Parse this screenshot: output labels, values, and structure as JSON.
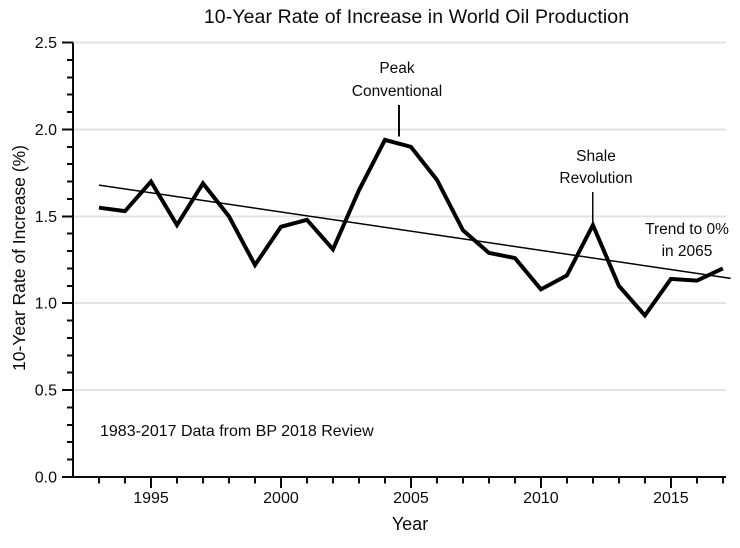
{
  "chart_data": {
    "type": "line",
    "title": "10-Year Rate of Increase in World Oil Production",
    "xlabel": "Year",
    "ylabel": "10-Year Rate of Increase (%)",
    "x": [
      1993,
      1994,
      1995,
      1996,
      1997,
      1998,
      1999,
      2000,
      2001,
      2002,
      2003,
      2004,
      2005,
      2006,
      2007,
      2008,
      2009,
      2010,
      2011,
      2012,
      2013,
      2014,
      2015,
      2016,
      2017
    ],
    "series": [
      {
        "name": "10-year rate of increase in world oil production",
        "values": [
          1.55,
          1.53,
          1.7,
          1.45,
          1.69,
          1.5,
          1.22,
          1.44,
          1.48,
          1.31,
          1.65,
          1.94,
          1.9,
          1.71,
          1.42,
          1.29,
          1.26,
          1.08,
          1.16,
          1.45,
          1.1,
          0.93,
          1.14,
          1.13,
          1.2
        ]
      }
    ],
    "trend": {
      "name": "linear trend",
      "x1": 1993,
      "y1": 1.68,
      "x2": 2017.3,
      "y2": 1.143
    },
    "xlim": [
      1992,
      2017.12
    ],
    "ylim": [
      0,
      2.5
    ],
    "x_major_ticks": [
      1995,
      2000,
      2005,
      2010,
      2015
    ],
    "x_tick_labels": [
      "1995",
      "2000",
      "2005",
      "2010",
      "2015"
    ],
    "x_minor_step": 1,
    "y_major_ticks": [
      0,
      0.5,
      1.0,
      1.5,
      2.0,
      2.5
    ],
    "y_tick_labels": [
      "0.0",
      "0.5",
      "1.0",
      "1.5",
      "2.0",
      "2.5"
    ],
    "y_minor_step": 0.1,
    "grid": "horizontal-major",
    "legend": "none",
    "annotations": [
      {
        "id": "peak-conventional",
        "line1": "Peak",
        "line2": "Conventional",
        "pointer": {
          "x": 2004.54,
          "v_from": 2.14,
          "v_to": 1.96
        }
      },
      {
        "id": "shale-revolution",
        "line1": "Shale",
        "line2": "Revolution",
        "pointer": {
          "x": 2012.0,
          "v_from": 1.64,
          "v_to": 1.46
        }
      },
      {
        "id": "trend-target",
        "line1": "Trend to 0%",
        "line2": "in 2065",
        "pointer": null
      }
    ],
    "footnote": "1983-2017 Data from BP 2018 Review",
    "colors": {
      "line": "#000000",
      "trend": "#000000",
      "grid": "#e3e3e3",
      "axis": "#0a0a0a",
      "text": "#0a0a0a",
      "background": "#ffffff"
    }
  }
}
